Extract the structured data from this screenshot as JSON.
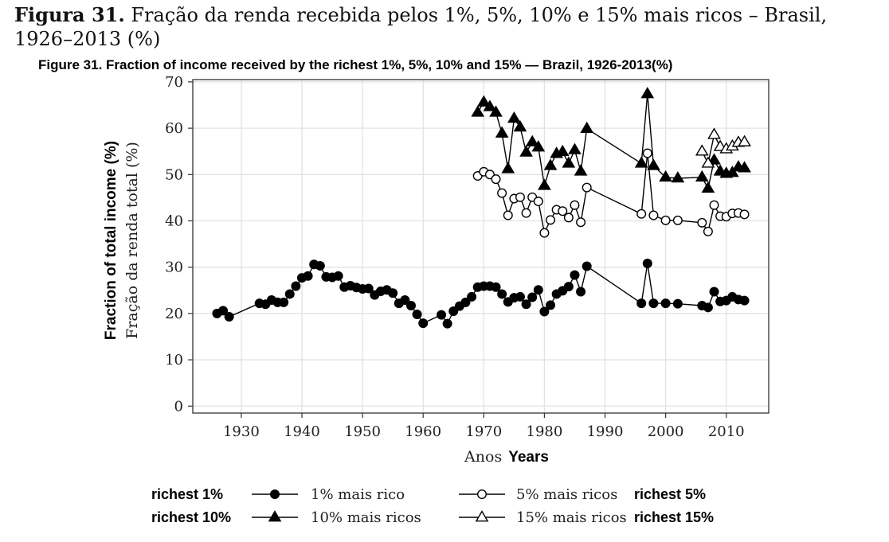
{
  "caption": {
    "label": "Figura 31.",
    "text": "Fração da renda recebida pelos 1%, 5%, 10% e 15% mais ricos – Brasil, 1926–2013 (%)",
    "english": "Figure 31. Fraction of income received by the richest 1%, 5%, 10% and 15% — Brazil, 1926-2013(%)"
  },
  "chart_data": {
    "type": "line",
    "xlabel": "Anos",
    "xlabel_en": "Years",
    "ylabel": "Fração da renda total (%)",
    "ylabel_en": "Fraction of total income (%)",
    "xlim": [
      1922,
      2017
    ],
    "ylim": [
      -1.5,
      70.5
    ],
    "xticks": [
      1930,
      1940,
      1950,
      1960,
      1970,
      1980,
      1990,
      2000,
      2010
    ],
    "yticks": [
      0,
      10,
      20,
      30,
      40,
      50,
      60,
      70
    ],
    "grid": true,
    "legend_position": "bottom",
    "series": [
      {
        "name": "1% mais rico",
        "name_en": "richest 1%",
        "marker": "filled-circle",
        "points": [
          [
            1926,
            20.0
          ],
          [
            1927,
            20.6
          ],
          [
            1928,
            19.3
          ],
          [
            1933,
            22.2
          ],
          [
            1934,
            22.0
          ],
          [
            1935,
            22.9
          ],
          [
            1936,
            22.4
          ],
          [
            1937,
            22.4
          ],
          [
            1938,
            24.2
          ],
          [
            1939,
            25.9
          ],
          [
            1940,
            27.7
          ],
          [
            1941,
            28.1
          ],
          [
            1942,
            30.6
          ],
          [
            1943,
            30.3
          ],
          [
            1944,
            27.9
          ],
          [
            1945,
            27.8
          ],
          [
            1946,
            28.1
          ],
          [
            1947,
            25.7
          ],
          [
            1948,
            26.0
          ],
          [
            1949,
            25.6
          ],
          [
            1950,
            25.3
          ],
          [
            1951,
            25.4
          ],
          [
            1952,
            24.0
          ],
          [
            1953,
            24.8
          ],
          [
            1954,
            25.1
          ],
          [
            1955,
            24.4
          ],
          [
            1956,
            22.2
          ],
          [
            1957,
            22.9
          ],
          [
            1958,
            21.7
          ],
          [
            1959,
            19.8
          ],
          [
            1960,
            17.9
          ],
          [
            1963,
            19.7
          ],
          [
            1964,
            17.8
          ],
          [
            1965,
            20.5
          ],
          [
            1966,
            21.6
          ],
          [
            1967,
            22.4
          ],
          [
            1968,
            23.6
          ],
          [
            1969,
            25.7
          ],
          [
            1970,
            25.9
          ],
          [
            1971,
            25.9
          ],
          [
            1972,
            25.7
          ],
          [
            1973,
            24.2
          ],
          [
            1974,
            22.5
          ],
          [
            1975,
            23.4
          ],
          [
            1976,
            23.6
          ],
          [
            1977,
            22.0
          ],
          [
            1978,
            23.5
          ],
          [
            1979,
            25.1
          ],
          [
            1980,
            20.4
          ],
          [
            1981,
            21.8
          ],
          [
            1982,
            24.2
          ],
          [
            1983,
            24.9
          ],
          [
            1984,
            25.8
          ],
          [
            1985,
            28.3
          ],
          [
            1986,
            24.7
          ],
          [
            1987,
            30.2
          ],
          [
            1996,
            22.2
          ],
          [
            1997,
            30.8
          ],
          [
            1998,
            22.2
          ],
          [
            2000,
            22.2
          ],
          [
            2002,
            22.1
          ],
          [
            2006,
            21.7
          ],
          [
            2007,
            21.3
          ],
          [
            2008,
            24.7
          ],
          [
            2009,
            22.6
          ],
          [
            2010,
            22.8
          ],
          [
            2011,
            23.6
          ],
          [
            2012,
            23.0
          ],
          [
            2013,
            22.8
          ]
        ]
      },
      {
        "name": "5% mais ricos",
        "name_en": "richest 5%",
        "marker": "open-circle",
        "points": [
          [
            1969,
            49.7
          ],
          [
            1970,
            50.6
          ],
          [
            1971,
            50.0
          ],
          [
            1972,
            49.0
          ],
          [
            1973,
            46.0
          ],
          [
            1974,
            41.2
          ],
          [
            1975,
            44.8
          ],
          [
            1976,
            45.1
          ],
          [
            1977,
            41.7
          ],
          [
            1978,
            45.1
          ],
          [
            1979,
            44.2
          ],
          [
            1980,
            37.4
          ],
          [
            1981,
            40.2
          ],
          [
            1982,
            42.4
          ],
          [
            1983,
            42.1
          ],
          [
            1984,
            40.7
          ],
          [
            1985,
            43.4
          ],
          [
            1986,
            39.7
          ],
          [
            1987,
            47.2
          ],
          [
            1996,
            41.5
          ],
          [
            1997,
            54.6
          ],
          [
            1998,
            41.2
          ],
          [
            2000,
            40.1
          ],
          [
            2002,
            40.1
          ],
          [
            2006,
            39.6
          ],
          [
            2007,
            37.7
          ],
          [
            2008,
            43.4
          ],
          [
            2009,
            41.0
          ],
          [
            2010,
            40.9
          ],
          [
            2011,
            41.6
          ],
          [
            2012,
            41.7
          ],
          [
            2013,
            41.4
          ]
        ]
      },
      {
        "name": "10% mais ricos",
        "name_en": "richest 10%",
        "marker": "filled-triangle",
        "points": [
          [
            1969,
            63.4
          ],
          [
            1970,
            65.6
          ],
          [
            1971,
            64.6
          ],
          [
            1972,
            63.4
          ],
          [
            1973,
            58.9
          ],
          [
            1974,
            51.2
          ],
          [
            1975,
            62.1
          ],
          [
            1976,
            60.2
          ],
          [
            1977,
            54.8
          ],
          [
            1978,
            57.0
          ],
          [
            1979,
            55.9
          ],
          [
            1980,
            47.6
          ],
          [
            1981,
            51.9
          ],
          [
            1982,
            54.5
          ],
          [
            1983,
            54.9
          ],
          [
            1984,
            52.4
          ],
          [
            1985,
            55.3
          ],
          [
            1986,
            50.7
          ],
          [
            1987,
            59.9
          ],
          [
            1996,
            52.4
          ],
          [
            1997,
            67.4
          ],
          [
            1998,
            51.9
          ],
          [
            2000,
            49.4
          ],
          [
            2002,
            49.2
          ],
          [
            2006,
            49.4
          ],
          [
            2007,
            47.0
          ],
          [
            2008,
            53.1
          ],
          [
            2009,
            50.7
          ],
          [
            2010,
            50.2
          ],
          [
            2011,
            50.4
          ],
          [
            2012,
            51.6
          ],
          [
            2013,
            51.4
          ]
        ]
      },
      {
        "name": "15% mais ricos",
        "name_en": "richest 15%",
        "marker": "open-triangle",
        "points": [
          [
            2006,
            55.0
          ],
          [
            2007,
            52.4
          ],
          [
            2008,
            58.6
          ],
          [
            2009,
            56.0
          ],
          [
            2010,
            55.5
          ],
          [
            2011,
            56.1
          ],
          [
            2012,
            56.9
          ],
          [
            2013,
            57.0
          ]
        ]
      }
    ]
  }
}
